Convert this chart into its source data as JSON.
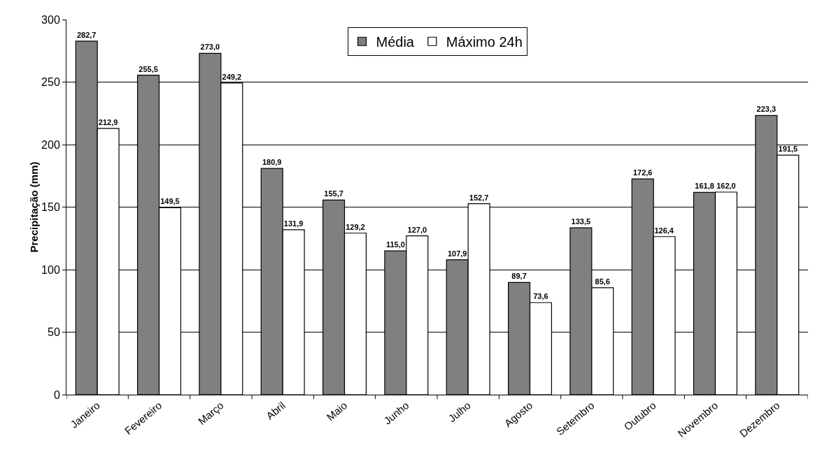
{
  "chart_data": {
    "type": "bar",
    "ylabel": "Precipitação (mm)",
    "categories": [
      "Janeiro",
      "Fevereiro",
      "Março",
      "Abril",
      "Maio",
      "Junho",
      "Julho",
      "Agosto",
      "Setembro",
      "Outubro",
      "Novembro",
      "Dezembro"
    ],
    "series": [
      {
        "name": "Média",
        "color": "#808080",
        "values": [
          282.7,
          255.5,
          273.0,
          180.9,
          155.7,
          115.0,
          107.9,
          89.7,
          133.5,
          172.6,
          161.8,
          223.3
        ],
        "value_labels": [
          "282,7",
          "255,5",
          "273,0",
          "180,9",
          "155,7",
          "115,0",
          "107,9",
          "89,7",
          "133,5",
          "172,6",
          "161,8",
          "223,3"
        ]
      },
      {
        "name": "Máximo 24h",
        "color": "#ffffff",
        "values": [
          212.9,
          149.5,
          249.2,
          131.9,
          129.2,
          127.0,
          152.7,
          73.6,
          85.6,
          126.4,
          162.0,
          191.5
        ],
        "value_labels": [
          "212,9",
          "149,5",
          "249,2",
          "131,9",
          "129,2",
          "127,0",
          "152,7",
          "73,6",
          "85,6",
          "126,4",
          "162,0",
          "191,5"
        ]
      }
    ],
    "ylim": [
      0,
      300
    ],
    "yticks": [
      0,
      50,
      100,
      150,
      200,
      250,
      300
    ],
    "grid": "y",
    "legend": "top"
  }
}
